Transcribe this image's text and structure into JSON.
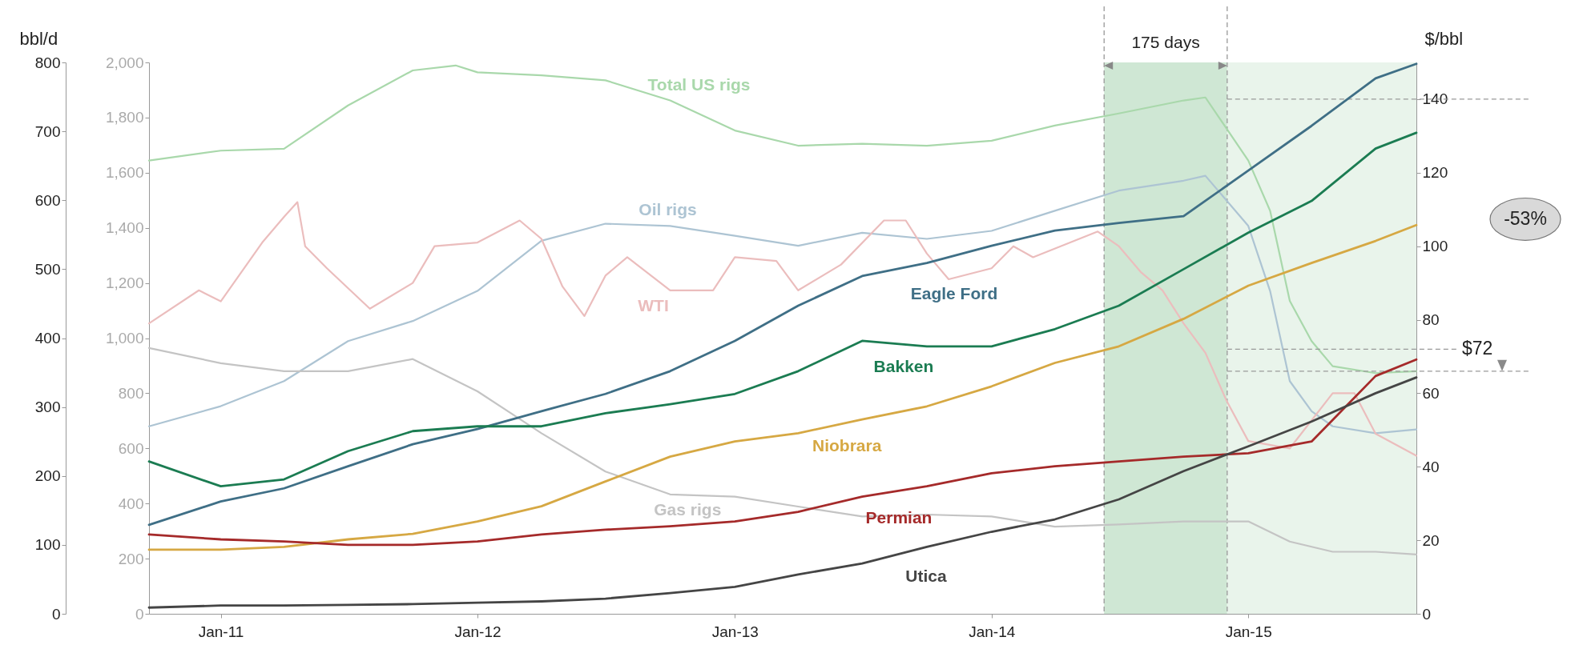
{
  "chart_data": {
    "type": "line",
    "ylabel": "bbl/d",
    "y2label": "$/bbl",
    "xlim": [
      "2010-09-21",
      "2015-08-28"
    ],
    "xticks": [
      {
        "value": "2011-01-01",
        "label": "Jan-11"
      },
      {
        "value": "2012-01-01",
        "label": "Jan-12"
      },
      {
        "value": "2013-01-01",
        "label": "Jan-13"
      },
      {
        "value": "2014-01-01",
        "label": "Jan-14"
      },
      {
        "value": "2015-01-01",
        "label": "Jan-15"
      }
    ],
    "ylim": [
      0,
      800
    ],
    "yticks": [
      0,
      100,
      200,
      300,
      400,
      500,
      600,
      700,
      800
    ],
    "y2lim": [
      0,
      150
    ],
    "y2ticks": [
      0,
      20,
      40,
      60,
      80,
      100,
      120,
      140
    ],
    "y3lim": [
      0,
      2000
    ],
    "y3ticks": [
      0,
      200,
      400,
      600,
      800,
      {
        "value": 1000,
        "label": "1,000"
      },
      {
        "value": 1200,
        "label": "1,200"
      },
      {
        "value": 1400,
        "label": "1,400"
      },
      {
        "value": 1600,
        "label": "1,600"
      },
      {
        "value": 1800,
        "label": "1,800"
      },
      {
        "value": 2000,
        "label": "2,000"
      }
    ],
    "series": [
      {
        "name": "Total US rigs",
        "color": "#a9d8ab",
        "axis": "y3",
        "x": [
          "2010-09-21",
          "2011-01",
          "2011-04",
          "2011-07",
          "2011-10",
          "2011-12",
          "2012-01",
          "2012-04",
          "2012-07",
          "2012-10",
          "2013-01",
          "2013-04",
          "2013-07",
          "2013-10",
          "2014-01",
          "2014-04",
          "2014-07",
          "2014-10",
          "2014-11",
          "2015-01",
          "2015-02",
          "2015-03",
          "2015-04",
          "2015-05",
          "2015-07",
          "2015-08-28"
        ],
        "values": [
          1644,
          1680,
          1687,
          1844,
          1971,
          1989,
          1964,
          1953,
          1935,
          1862,
          1753,
          1698,
          1705,
          1698,
          1716,
          1771,
          1815,
          1862,
          1873,
          1644,
          1462,
          1135,
          989,
          898,
          873,
          880
        ]
      },
      {
        "name": "Oil rigs",
        "color": "#adc4d3",
        "axis": "y3",
        "x": [
          "2010-09-21",
          "2011-01",
          "2011-04",
          "2011-07",
          "2011-10",
          "2012-01",
          "2012-04",
          "2012-07",
          "2012-10",
          "2013-01",
          "2013-04",
          "2013-07",
          "2013-10",
          "2014-01",
          "2014-04",
          "2014-07",
          "2014-10",
          "2014-11",
          "2015-01",
          "2015-02",
          "2015-03",
          "2015-04",
          "2015-05",
          "2015-07",
          "2015-08-28"
        ],
        "values": [
          680,
          753,
          844,
          989,
          1062,
          1171,
          1353,
          1415,
          1407,
          1371,
          1335,
          1382,
          1360,
          1389,
          1462,
          1535,
          1571,
          1589,
          1407,
          1171,
          844,
          735,
          680,
          655,
          669
        ]
      },
      {
        "name": "Gas rigs",
        "color": "#c4c4c4",
        "axis": "y3",
        "x": [
          "2010-09-21",
          "2011-01",
          "2011-04",
          "2011-07",
          "2011-10",
          "2012-01",
          "2012-04",
          "2012-07",
          "2012-10",
          "2013-01",
          "2013-04",
          "2013-07",
          "2013-10",
          "2014-01",
          "2014-04",
          "2014-07",
          "2014-10",
          "2015-01",
          "2015-03",
          "2015-05",
          "2015-07",
          "2015-08-28"
        ],
        "values": [
          964,
          909,
          880,
          880,
          924,
          807,
          655,
          516,
          433,
          425,
          389,
          353,
          360,
          353,
          316,
          324,
          335,
          335,
          262,
          225,
          225,
          215
        ]
      },
      {
        "name": "WTI",
        "color": "#ebbdbd",
        "axis": "y2",
        "x": [
          "2010-09-21",
          "2010-12",
          "2011-01",
          "2011-03",
          "2011-04",
          "2011-04-20",
          "2011-05",
          "2011-06",
          "2011-08",
          "2011-10",
          "2011-11",
          "2012-01",
          "2012-03",
          "2012-04",
          "2012-05",
          "2012-06",
          "2012-07",
          "2012-08",
          "2012-10",
          "2012-12",
          "2013-01",
          "2013-03",
          "2013-04",
          "2013-06",
          "2013-08",
          "2013-09",
          "2013-10",
          "2013-11",
          "2014-01",
          "2014-02",
          "2014-03",
          "2014-06",
          "2014-07",
          "2014-08",
          "2014-09",
          "2014-10",
          "2014-11",
          "2014-12",
          "2015-01",
          "2015-03",
          "2015-05",
          "2015-06",
          "2015-07",
          "2015-08-28"
        ],
        "values": [
          79,
          88,
          85,
          101,
          108,
          112,
          100,
          94,
          83,
          90,
          100,
          101,
          107,
          102,
          89,
          81,
          92,
          97,
          88,
          88,
          97,
          96,
          88,
          95,
          107,
          107,
          98,
          91,
          94,
          100,
          97,
          104,
          100,
          93,
          88,
          79,
          71,
          58,
          47,
          45,
          60,
          60,
          49,
          43
        ]
      },
      {
        "name": "Eagle Ford",
        "color": "#3f6f86",
        "x": [
          "2010-09-21",
          "2011-01",
          "2011-04",
          "2011-07",
          "2011-10",
          "2012-01",
          "2012-04",
          "2012-07",
          "2012-10",
          "2013-01",
          "2013-04",
          "2013-07",
          "2013-10",
          "2014-01",
          "2014-04",
          "2014-07",
          "2014-10",
          "2015-01",
          "2015-04",
          "2015-07",
          "2015-08-28"
        ],
        "values": [
          129,
          163,
          182,
          214,
          246,
          268,
          294,
          319,
          352,
          396,
          447,
          490,
          509,
          534,
          556,
          567,
          577,
          643,
          708,
          777,
          798
        ]
      },
      {
        "name": "Bakken",
        "color": "#1b7c52",
        "x": [
          "2010-09-21",
          "2011-01",
          "2011-04",
          "2011-07",
          "2011-10",
          "2012-01",
          "2012-04",
          "2012-07",
          "2012-10",
          "2013-01",
          "2013-04",
          "2013-07",
          "2013-10",
          "2014-01",
          "2014-04",
          "2014-07",
          "2014-10",
          "2015-01",
          "2015-04",
          "2015-07",
          "2015-08-28"
        ],
        "values": [
          221,
          185,
          195,
          236,
          265,
          272,
          272,
          291,
          304,
          319,
          352,
          396,
          388,
          388,
          413,
          447,
          500,
          553,
          599,
          675,
          698
        ]
      },
      {
        "name": "Niobrara",
        "color": "#d6a843",
        "x": [
          "2010-09-21",
          "2011-01",
          "2011-04",
          "2011-07",
          "2011-10",
          "2012-01",
          "2012-04",
          "2012-07",
          "2012-10",
          "2013-01",
          "2013-04",
          "2013-07",
          "2013-10",
          "2014-01",
          "2014-04",
          "2014-07",
          "2014-10",
          "2015-01",
          "2015-04",
          "2015-07",
          "2015-08-28"
        ],
        "values": [
          93,
          93,
          97,
          108,
          116,
          134,
          156,
          192,
          228,
          250,
          262,
          282,
          301,
          330,
          364,
          388,
          428,
          476,
          509,
          541,
          564
        ]
      },
      {
        "name": "Permian",
        "color": "#a52a2a",
        "x": [
          "2010-09-21",
          "2011-01",
          "2011-04",
          "2011-07",
          "2011-10",
          "2012-01",
          "2012-04",
          "2012-07",
          "2012-10",
          "2013-01",
          "2013-04",
          "2013-07",
          "2013-10",
          "2014-01",
          "2014-04",
          "2014-07",
          "2014-10",
          "2015-01",
          "2015-04",
          "2015-07",
          "2015-08-28"
        ],
        "values": [
          115,
          108,
          105,
          100,
          100,
          105,
          115,
          122,
          127,
          134,
          148,
          170,
          185,
          204,
          214,
          221,
          228,
          233,
          250,
          345,
          369
        ]
      },
      {
        "name": "Utica",
        "color": "#454545",
        "x": [
          "2010-09-21",
          "2011-01",
          "2011-04",
          "2011-07",
          "2011-10",
          "2012-01",
          "2012-04",
          "2012-07",
          "2012-10",
          "2013-01",
          "2013-04",
          "2013-07",
          "2013-10",
          "2014-01",
          "2014-04",
          "2014-07",
          "2014-10",
          "2015-01",
          "2015-04",
          "2015-07",
          "2015-08-28"
        ],
        "values": [
          9,
          12,
          12,
          13,
          14,
          16,
          18,
          22,
          30,
          39,
          57,
          73,
          97,
          119,
          137,
          166,
          207,
          243,
          279,
          320,
          343
        ]
      }
    ],
    "bands": [
      {
        "axis": "x",
        "from": "2014-06-10",
        "to": "2014-12-02",
        "color": "#cfe7d4"
      },
      {
        "axis": "x",
        "from": "2014-12-02",
        "to": "2015-08-28",
        "color": "#e9f4eb"
      }
    ],
    "ref_lines": [
      {
        "axis": "x",
        "value": "2014-06-10",
        "line_style": "dashed",
        "color": "#999999"
      },
      {
        "axis": "x",
        "value": "2014-12-02",
        "line_style": "dashed",
        "color": "#999999"
      },
      {
        "axis": "y2",
        "value": 140,
        "line_style": "dashed",
        "color": "#999999"
      },
      {
        "axis": "y2",
        "value": 72,
        "label": "$72",
        "line_style": "dashed",
        "color": "#999999"
      },
      {
        "axis": "y2",
        "value": 66,
        "line_style": "dashed",
        "color": "#999999"
      }
    ],
    "annotations": [
      "175 days",
      "-53%"
    ]
  }
}
